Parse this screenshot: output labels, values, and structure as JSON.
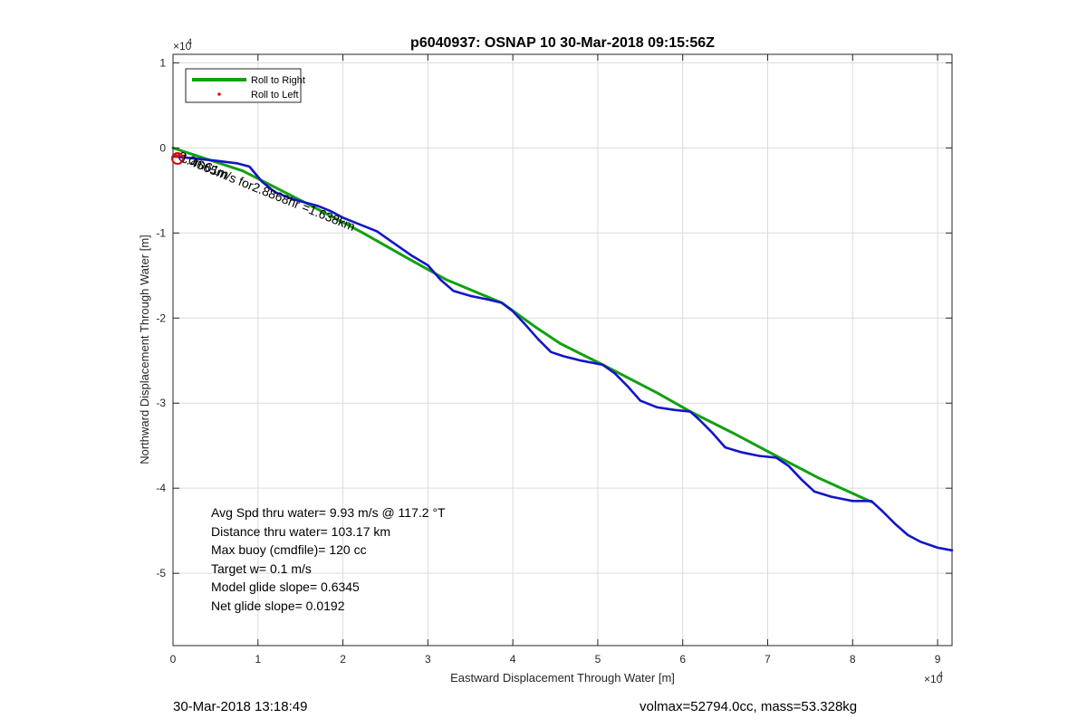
{
  "chart_data": {
    "type": "line",
    "title": "p6040937: OSNAP 10 30-Mar-2018 09:15:56Z",
    "xlabel": "Eastward Displacement Through Water [m]",
    "ylabel": "Northward Displacement Through Water [m]",
    "x_exponent_label": "×10",
    "x_exponent_power": "4",
    "y_exponent_label": "×10",
    "y_exponent_power": "4",
    "xlim": [
      0,
      9.17
    ],
    "ylim": [
      -5.85,
      1.1
    ],
    "x_unit_scale": 10000,
    "y_unit_scale": 10000,
    "xticks": [
      0,
      1,
      2,
      3,
      4,
      5,
      6,
      7,
      8,
      9
    ],
    "xtick_labels": [
      "0",
      "1",
      "2",
      "3",
      "4",
      "5",
      "6",
      "7",
      "8",
      "9"
    ],
    "yticks": [
      1,
      0,
      -1,
      -2,
      -3,
      -4,
      -5
    ],
    "ytick_labels": [
      "1",
      "0",
      "-1",
      "-2",
      "-3",
      "-4",
      "-5"
    ],
    "grid": true,
    "legend_position": "top-left",
    "legend": [
      {
        "label": "Roll to Right",
        "color": "#12a012",
        "marker": "line"
      },
      {
        "label": "Roll to Left",
        "color": "#e01010",
        "marker": "dot"
      }
    ],
    "series": [
      {
        "name": "Roll to Right",
        "color": "#12a012",
        "x": [
          0,
          0.82,
          1.59,
          2.22,
          2.75,
          3.22,
          3.87,
          4.26,
          4.56,
          5.06,
          5.7,
          6.09,
          6.59,
          7.1,
          7.6,
          8.22
        ],
        "y": [
          0,
          -0.27,
          -0.66,
          -0.99,
          -1.29,
          -1.55,
          -1.82,
          -2.1,
          -2.3,
          -2.55,
          -2.88,
          -3.1,
          -3.35,
          -3.62,
          -3.88,
          -4.16
        ]
      },
      {
        "name": "",
        "color": "#1414c8",
        "x": [
          0,
          0.2,
          0.5,
          0.75,
          0.9,
          1.05,
          1.2,
          1.4,
          1.55,
          1.7,
          1.85,
          2.0,
          2.2,
          2.4,
          2.6,
          2.8,
          3.0,
          3.15,
          3.3,
          3.5,
          3.7,
          3.87,
          4.0,
          4.15,
          4.3,
          4.45,
          4.6,
          4.8,
          5.06,
          5.2,
          5.35,
          5.5,
          5.7,
          5.9,
          6.09,
          6.2,
          6.35,
          6.5,
          6.7,
          6.9,
          7.1,
          7.25,
          7.4,
          7.55,
          7.75,
          8.0,
          8.22,
          8.35,
          8.5,
          8.65,
          8.8,
          9.0,
          9.17
        ],
        "y": [
          -0.1,
          -0.12,
          -0.15,
          -0.18,
          -0.22,
          -0.4,
          -0.52,
          -0.6,
          -0.64,
          -0.68,
          -0.74,
          -0.82,
          -0.9,
          -0.98,
          -1.12,
          -1.26,
          -1.38,
          -1.55,
          -1.68,
          -1.74,
          -1.78,
          -1.82,
          -1.92,
          -2.08,
          -2.25,
          -2.4,
          -2.45,
          -2.5,
          -2.55,
          -2.65,
          -2.8,
          -2.97,
          -3.05,
          -3.08,
          -3.1,
          -3.2,
          -3.35,
          -3.52,
          -3.58,
          -3.62,
          -3.64,
          -3.74,
          -3.9,
          -4.04,
          -4.1,
          -4.15,
          -4.15,
          -4.27,
          -4.42,
          -4.55,
          -4.63,
          -4.7,
          -4.73
        ]
      },
      {
        "name": "Roll to Left",
        "color": "#e01010",
        "x": [
          0.03,
          0.05,
          0.07
        ],
        "y": [
          -0.09,
          -0.1,
          -0.08
        ]
      }
    ],
    "annotations": {
      "diagonal_text": "1.4665m/s for2.8868hr =1.638km",
      "overlap_text": "3.0m61m",
      "stats": [
        "Avg Spd thru water=  9.93 m/s @ 117.2 °T",
        "Distance thru water= 103.17 km",
        "Max buoy (cmdfile)= 120 cc",
        "Target w= 0.1 m/s",
        "Model glide slope= 0.6345",
        "Net glide slope= 0.0192"
      ]
    }
  },
  "footer": {
    "timestamp": "30-Mar-2018 13:18:49",
    "volume_mass": "volmax=52794.0cc, mass=53.328kg"
  }
}
